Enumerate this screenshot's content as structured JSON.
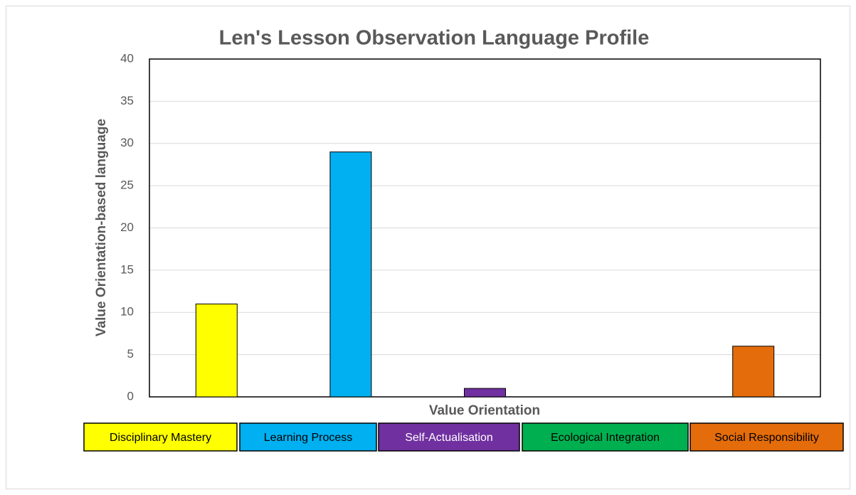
{
  "chart_data": {
    "type": "bar",
    "title": "Len's Lesson Observation Language Profile",
    "x_label": "Value Orientation",
    "y_label": "Value Orientation-based language",
    "categories": [
      "Disciplinary Mastery",
      "Learning Process",
      "Self-Actualisation",
      "Ecological Integration",
      "Social Responsibility"
    ],
    "values": [
      11,
      29,
      1,
      0,
      6
    ],
    "colors": [
      "#ffff00",
      "#00b0f0",
      "#7030a0",
      "#00b050",
      "#e46c0a"
    ],
    "ylim": [
      0,
      40
    ],
    "yticks": [
      0,
      5,
      10,
      15,
      20,
      25,
      30,
      35,
      40
    ],
    "grid": true
  }
}
